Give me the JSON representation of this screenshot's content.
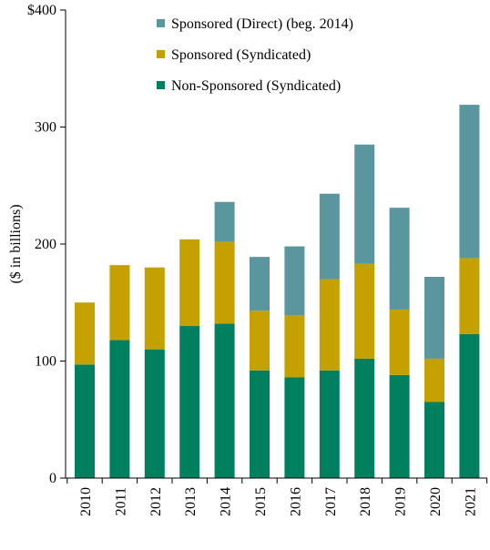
{
  "chart_data": {
    "type": "bar",
    "stacked": true,
    "categories": [
      "2010",
      "2011",
      "2012",
      "2013",
      "2014",
      "2015",
      "2016",
      "2017",
      "2018",
      "2019",
      "2020",
      "2021"
    ],
    "series": [
      {
        "name": "Non-Sponsored (Syndicated)",
        "color": "#00805f",
        "values": [
          97,
          118,
          110,
          130,
          132,
          92,
          86,
          92,
          102,
          88,
          65,
          123
        ]
      },
      {
        "name": "Sponsored (Syndicated)",
        "color": "#c4a000",
        "values": [
          53,
          64,
          70,
          74,
          70,
          51,
          53,
          78,
          81,
          56,
          37,
          65
        ]
      },
      {
        "name": "Sponsored (Direct) (beg. 2014)",
        "color": "#5a969e",
        "values": [
          0,
          0,
          0,
          0,
          34,
          46,
          59,
          73,
          102,
          87,
          70,
          131
        ]
      }
    ],
    "ylabel": "($ in billions)",
    "ylim": [
      0,
      400
    ],
    "yticks": [
      {
        "value": 0,
        "label": "0"
      },
      {
        "value": 100,
        "label": "100"
      },
      {
        "value": 200,
        "label": "200"
      },
      {
        "value": 300,
        "label": "300"
      },
      {
        "value": 400,
        "label": "$400"
      }
    ],
    "legend_order": [
      2,
      1,
      0
    ],
    "legend_position": "top-center",
    "grid": false
  }
}
